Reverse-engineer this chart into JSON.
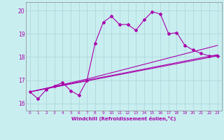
{
  "xlabel": "Windchill (Refroidissement éolien,°C)",
  "xlim": [
    -0.5,
    23.5
  ],
  "ylim": [
    15.7,
    20.35
  ],
  "yticks": [
    16,
    17,
    18,
    19,
    20
  ],
  "xticks": [
    0,
    1,
    2,
    3,
    4,
    5,
    6,
    7,
    8,
    9,
    10,
    11,
    12,
    13,
    14,
    15,
    16,
    17,
    18,
    19,
    20,
    21,
    22,
    23
  ],
  "bg_color": "#c8eef0",
  "line_color": "#aa00aa",
  "line1_x": [
    0,
    1,
    2,
    3,
    4,
    5,
    6,
    7,
    8,
    9,
    10,
    11,
    12,
    13,
    14,
    15,
    16,
    17,
    18,
    19,
    20,
    21,
    22,
    23
  ],
  "line1_y": [
    16.5,
    16.2,
    16.6,
    16.75,
    16.9,
    16.55,
    16.35,
    17.0,
    18.6,
    19.5,
    19.75,
    19.4,
    19.4,
    19.15,
    19.6,
    19.95,
    19.85,
    19.0,
    19.05,
    18.5,
    18.3,
    18.15,
    18.05,
    18.05
  ],
  "line2_x": [
    0,
    23
  ],
  "line2_y": [
    16.5,
    18.05
  ],
  "line3_x": [
    0,
    7,
    23
  ],
  "line3_y": [
    16.5,
    17.0,
    18.1
  ],
  "line4_x": [
    0,
    7,
    23
  ],
  "line4_y": [
    16.5,
    17.05,
    18.5
  ],
  "marker": "D",
  "markersize": 2.0,
  "linewidth": 0.8
}
